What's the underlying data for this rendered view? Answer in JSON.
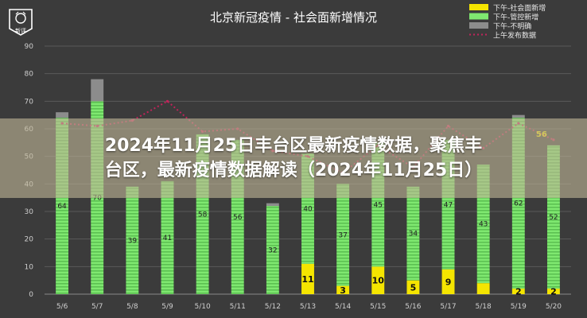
{
  "logo": {
    "text": "新评"
  },
  "overlay": {
    "line1": "2024年11月25日丰台区最新疫情数据，聚焦丰",
    "line2": "台区，最新疫情数据解读（2024年11月25日）"
  },
  "chart_data": {
    "type": "bar",
    "title": "北京新冠疫情 - 社会面新增情况",
    "categories": [
      "5/6",
      "5/7",
      "5/8",
      "5/9",
      "5/10",
      "5/11",
      "5/12",
      "5/13",
      "5/14",
      "5/15",
      "5/16",
      "5/17",
      "5/18",
      "5/19",
      "5/20"
    ],
    "ylim": [
      0,
      90
    ],
    "yticks": [
      0,
      10,
      20,
      30,
      40,
      50,
      60,
      70,
      80,
      90
    ],
    "grid": true,
    "legend_position": "top-right",
    "series": [
      {
        "name": "下午-社会面新增",
        "kind": "bar",
        "color": "#f5e500",
        "values": [
          0,
          0,
          0,
          0,
          0,
          0,
          0,
          11,
          3,
          10,
          5,
          9,
          4,
          2,
          2
        ],
        "labels": [
          "",
          "",
          "",
          "",
          "",
          "",
          "",
          "11",
          "3",
          "10",
          "5",
          "9",
          "",
          "2",
          "2"
        ]
      },
      {
        "name": "下午-管控新增",
        "kind": "bar",
        "color": "#7fe870",
        "values": [
          64,
          70,
          39,
          41,
          58,
          56,
          32,
          40,
          37,
          45,
          34,
          47,
          43,
          62,
          52
        ],
        "labels": [
          "64",
          "70",
          "39",
          "41",
          "58",
          "56",
          "32",
          "40",
          "37",
          "45",
          "34",
          "47",
          "43",
          "62",
          "52"
        ]
      },
      {
        "name": "下午-不明确",
        "kind": "bar",
        "color": "#8c8c8c",
        "values": [
          2,
          8,
          0,
          0,
          0,
          0,
          1,
          0,
          0,
          0,
          0,
          0,
          0,
          1,
          0
        ]
      },
      {
        "name": "上午发布数据",
        "kind": "line",
        "color": "#c0245a",
        "values": [
          62,
          61,
          63,
          70,
          59,
          60,
          52,
          50,
          44,
          54,
          46,
          61,
          53,
          62,
          56
        ],
        "end_label": "56"
      }
    ]
  }
}
